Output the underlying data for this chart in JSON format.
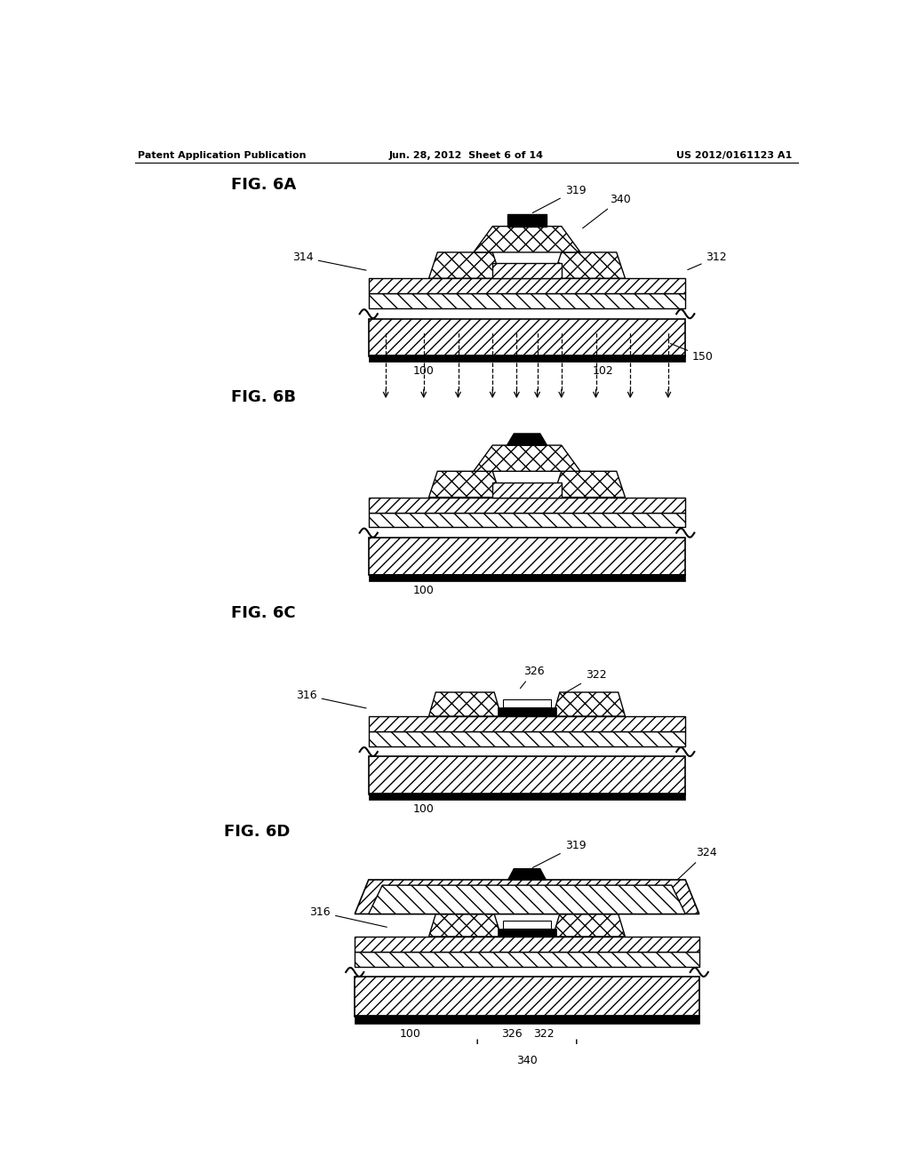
{
  "title_left": "Patent Application Publication",
  "title_center": "Jun. 28, 2012  Sheet 6 of 14",
  "title_right": "US 2012/0161123 A1",
  "background": "#ffffff"
}
